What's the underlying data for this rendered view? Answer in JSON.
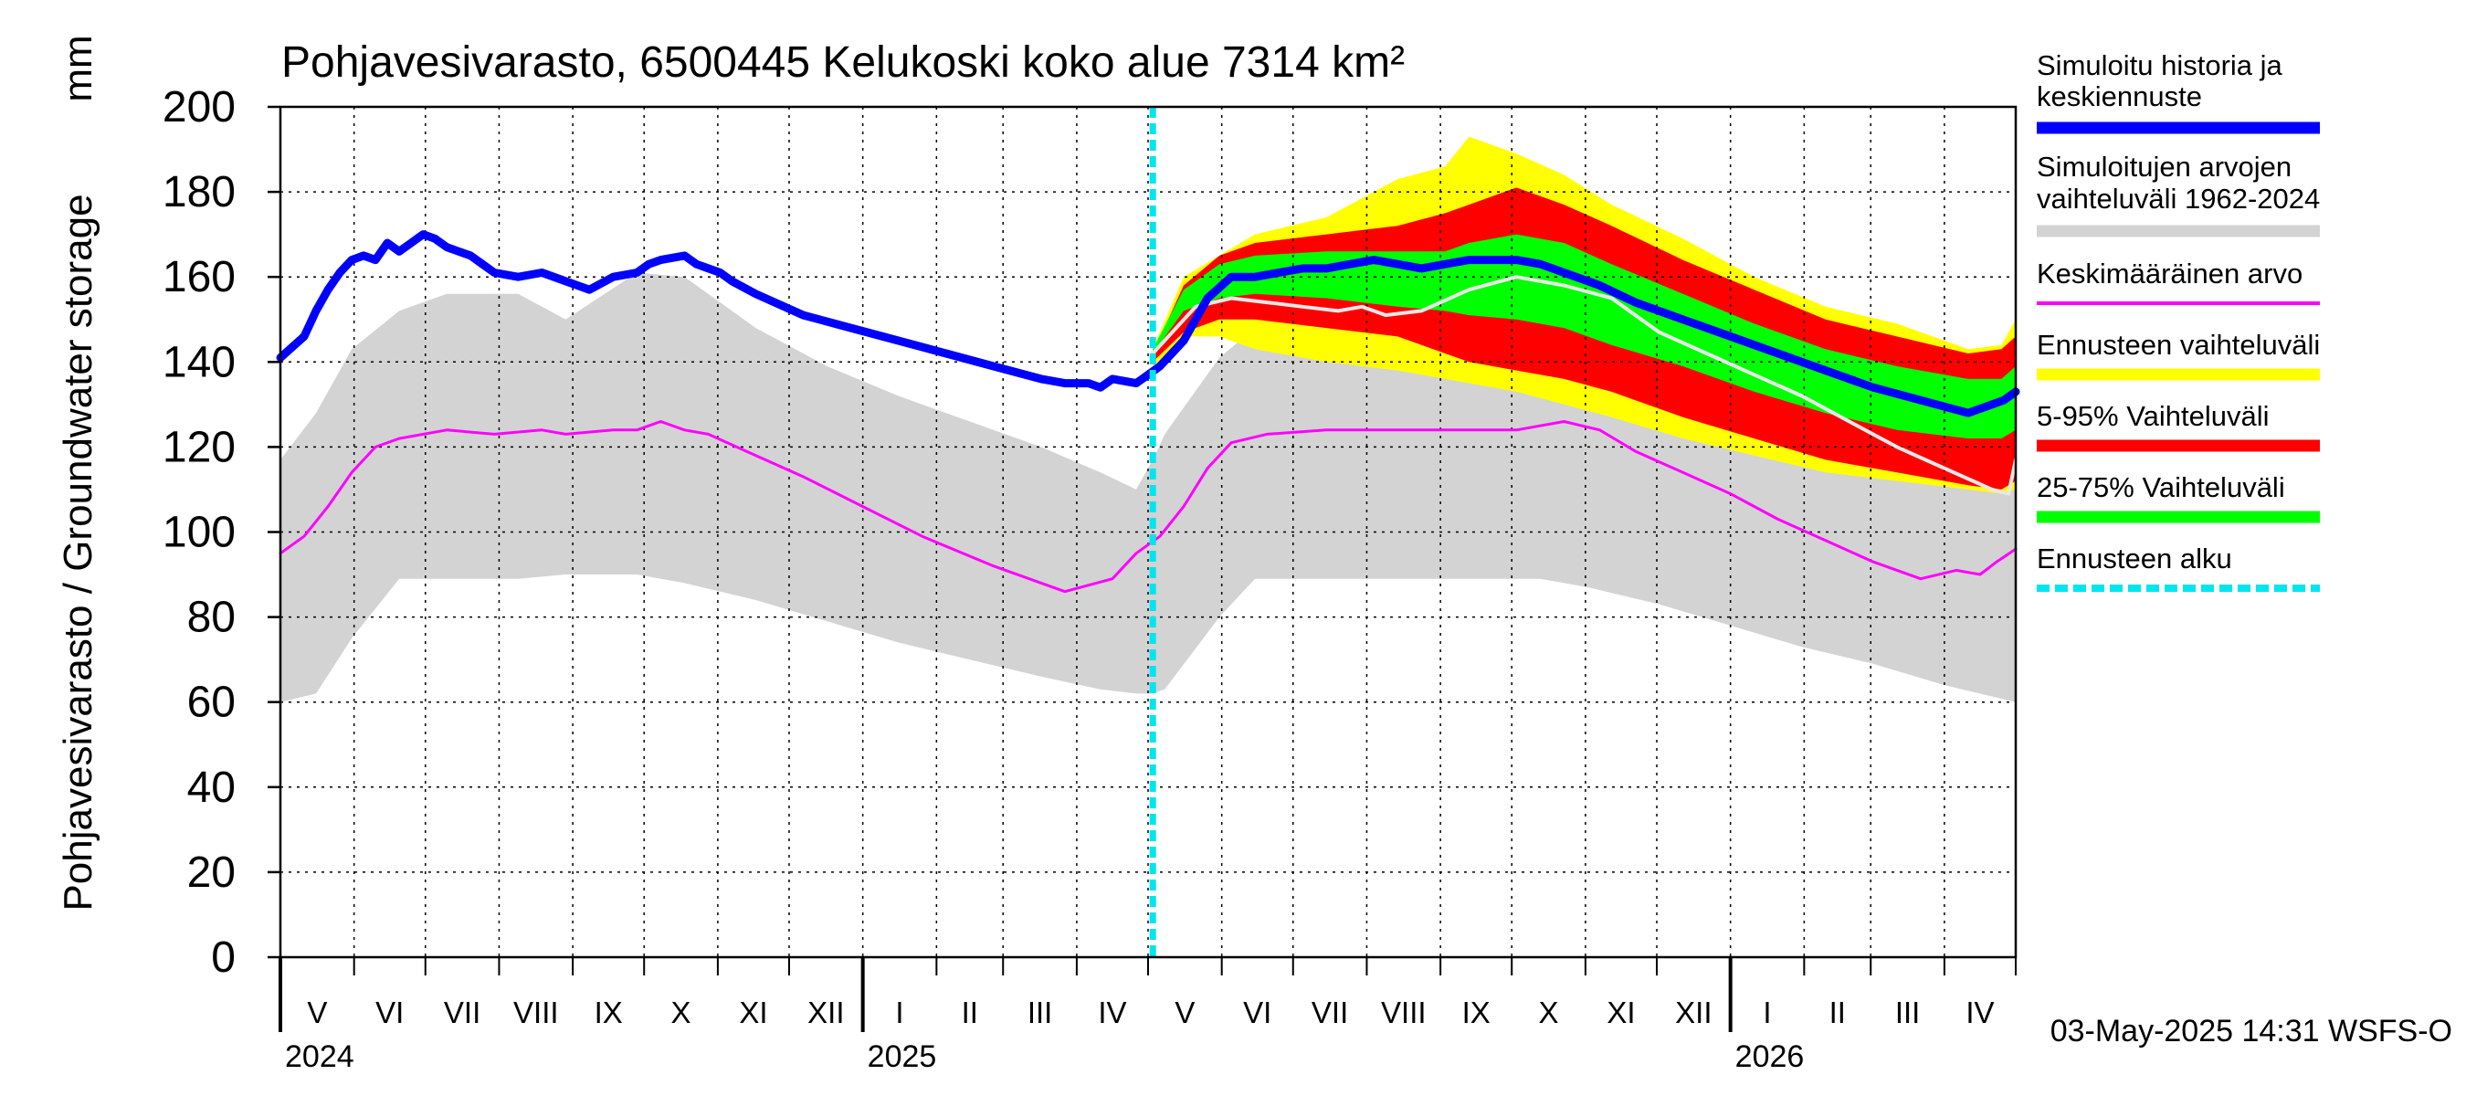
{
  "chart_data": {
    "type": "area",
    "title": "Pohjavesivarasto, 6500445 Kelukoski koko alue 7314 km²",
    "ylabel": "Pohjavesivarasto / Groundwater storage",
    "yunit": "mm",
    "ylim": [
      0,
      200
    ],
    "yticks": [
      0,
      20,
      40,
      60,
      80,
      100,
      120,
      140,
      160,
      180,
      200
    ],
    "xlim_days": [
      0,
      730
    ],
    "months": [
      {
        "label": "V",
        "start": 0,
        "end": 31
      },
      {
        "label": "VI",
        "start": 31,
        "end": 61
      },
      {
        "label": "VII",
        "start": 61,
        "end": 92
      },
      {
        "label": "VIII",
        "start": 92,
        "end": 123
      },
      {
        "label": "IX",
        "start": 123,
        "end": 153
      },
      {
        "label": "X",
        "start": 153,
        "end": 184
      },
      {
        "label": "XI",
        "start": 184,
        "end": 214
      },
      {
        "label": "XII",
        "start": 214,
        "end": 245
      },
      {
        "label": "I",
        "start": 245,
        "end": 276
      },
      {
        "label": "II",
        "start": 276,
        "end": 304
      },
      {
        "label": "III",
        "start": 304,
        "end": 335
      },
      {
        "label": "IV",
        "start": 335,
        "end": 365
      },
      {
        "label": "V",
        "start": 365,
        "end": 396
      },
      {
        "label": "VI",
        "start": 396,
        "end": 426
      },
      {
        "label": "VII",
        "start": 426,
        "end": 457
      },
      {
        "label": "VIII",
        "start": 457,
        "end": 488
      },
      {
        "label": "IX",
        "start": 488,
        "end": 518
      },
      {
        "label": "X",
        "start": 518,
        "end": 549
      },
      {
        "label": "XI",
        "start": 549,
        "end": 579
      },
      {
        "label": "XII",
        "start": 579,
        "end": 610
      },
      {
        "label": "I",
        "start": 610,
        "end": 641
      },
      {
        "label": "II",
        "start": 641,
        "end": 669
      },
      {
        "label": "III",
        "start": 669,
        "end": 700
      },
      {
        "label": "IV",
        "start": 700,
        "end": 730
      }
    ],
    "years": [
      {
        "label": "2024",
        "day": 0
      },
      {
        "label": "2025",
        "day": 245
      },
      {
        "label": "2026",
        "day": 610
      }
    ],
    "forecast_start_day": 367,
    "series": [
      {
        "name": "Simuloitujen arvojen vaihteluväli 1962-2024",
        "kind": "band",
        "color": "#d3d3d3",
        "x": [
          0,
          15,
          30,
          50,
          70,
          100,
          120,
          150,
          170,
          200,
          230,
          260,
          290,
          320,
          345,
          360,
          367,
          372,
          395,
          410,
          440,
          470,
          500,
          530,
          550,
          580,
          610,
          640,
          670,
          700,
          730
        ],
        "lower": [
          60,
          62,
          75,
          89,
          89,
          89,
          90,
          90,
          88,
          84,
          79,
          74,
          70,
          66,
          63,
          62,
          62,
          63,
          80,
          89,
          89,
          89,
          89,
          89,
          87,
          83,
          78,
          73,
          69,
          64,
          60
        ],
        "upper": [
          117,
          128,
          143,
          152,
          156,
          156,
          150,
          161,
          160,
          148,
          139,
          132,
          126,
          120,
          114,
          110,
          117,
          123,
          141,
          148,
          153,
          156,
          158,
          158,
          152,
          145,
          138,
          132,
          126,
          120,
          115
        ]
      },
      {
        "name": "Ennusteen vaihteluväli",
        "kind": "band",
        "color": "#ffff00",
        "x": [
          367,
          380,
          395,
          410,
          440,
          470,
          490,
          500,
          520,
          540,
          560,
          590,
          620,
          650,
          680,
          710,
          724,
          730
        ],
        "lower": [
          138,
          146,
          146,
          143,
          140,
          138,
          136,
          135,
          133,
          130,
          127,
          122,
          118,
          114,
          112,
          110,
          109,
          110
        ],
        "upper": [
          143,
          160,
          165,
          170,
          174,
          183,
          186,
          193,
          189,
          184,
          177,
          169,
          160,
          153,
          149,
          143,
          144,
          150
        ]
      },
      {
        "name": "5-95% Vaihteluväli",
        "kind": "band",
        "color": "#ff0000",
        "x": [
          367,
          380,
          395,
          410,
          440,
          470,
          490,
          500,
          520,
          540,
          560,
          590,
          620,
          650,
          680,
          710,
          724,
          730
        ],
        "lower": [
          140,
          147,
          150,
          150,
          148,
          146,
          142,
          140,
          138,
          136,
          133,
          127,
          122,
          117,
          114,
          111,
          110,
          112
        ],
        "upper": [
          142,
          158,
          165,
          168,
          170,
          172,
          175,
          177,
          181,
          177,
          172,
          164,
          157,
          150,
          146,
          142,
          143,
          146
        ]
      },
      {
        "name": "25-75% Vaihteluväli",
        "kind": "band",
        "color": "#00ff00",
        "x": [
          367,
          380,
          395,
          410,
          440,
          470,
          490,
          500,
          520,
          540,
          560,
          590,
          620,
          650,
          680,
          710,
          724,
          730
        ],
        "lower": [
          142,
          152,
          155,
          156,
          155,
          153,
          152,
          151,
          150,
          148,
          144,
          139,
          133,
          128,
          124,
          122,
          122,
          124
        ],
        "upper": [
          143,
          157,
          163,
          165,
          166,
          166,
          166,
          168,
          170,
          168,
          163,
          156,
          149,
          143,
          139,
          136,
          136,
          139
        ]
      },
      {
        "name": "Ennuste (harmaa viiva)",
        "kind": "line",
        "color": "#e8e8e8",
        "width": 4,
        "x": [
          367,
          385,
          400,
          415,
          430,
          445,
          455,
          465,
          480,
          500,
          520,
          540,
          560,
          580,
          600,
          620,
          640,
          660,
          680,
          700,
          720,
          727,
          730
        ],
        "y": [
          142,
          153,
          155,
          154,
          153,
          152,
          153,
          151,
          152,
          157,
          160,
          158,
          155,
          147,
          142,
          137,
          132,
          126,
          120,
          115,
          110,
          109,
          117
        ]
      },
      {
        "name": "Keskimääräinen arvo",
        "kind": "line",
        "color": "#ff00ff",
        "width": 3,
        "x": [
          0,
          10,
          20,
          30,
          40,
          50,
          70,
          90,
          110,
          120,
          140,
          150,
          160,
          170,
          180,
          200,
          220,
          245,
          270,
          300,
          330,
          350,
          360,
          370,
          380,
          390,
          400,
          415,
          440,
          470,
          500,
          520,
          540,
          555,
          570,
          590,
          610,
          630,
          650,
          670,
          690,
          705,
          715,
          722,
          730
        ],
        "y": [
          95,
          99,
          106,
          114,
          120,
          122,
          124,
          123,
          124,
          123,
          124,
          124,
          126,
          124,
          123,
          118,
          113,
          106,
          99,
          92,
          86,
          89,
          95,
          99,
          106,
          115,
          121,
          123,
          124,
          124,
          124,
          124,
          126,
          124,
          119,
          114,
          109,
          103,
          98,
          93,
          89,
          91,
          90,
          93,
          96
        ]
      },
      {
        "name": "Simuloitu historia ja keskiennuste",
        "kind": "line",
        "color": "#0000ff",
        "width": 9,
        "x": [
          0,
          10,
          15,
          20,
          25,
          30,
          35,
          40,
          45,
          50,
          55,
          60,
          65,
          70,
          75,
          80,
          85,
          90,
          100,
          110,
          120,
          130,
          140,
          150,
          155,
          160,
          170,
          175,
          180,
          185,
          190,
          200,
          220,
          240,
          260,
          280,
          300,
          320,
          330,
          340,
          345,
          350,
          360,
          370,
          380,
          390,
          400,
          410,
          420,
          430,
          440,
          450,
          460,
          470,
          480,
          490,
          500,
          510,
          520,
          530,
          540,
          555,
          570,
          590,
          610,
          630,
          650,
          670,
          690,
          710,
          720,
          725,
          730
        ],
        "y": [
          141,
          146,
          152,
          157,
          161,
          164,
          165,
          164,
          168,
          166,
          168,
          170,
          169,
          167,
          166,
          165,
          163,
          161,
          160,
          161,
          159,
          157,
          160,
          161,
          163,
          164,
          165,
          163,
          162,
          161,
          159,
          156,
          151,
          148,
          145,
          142,
          139,
          136,
          135,
          135,
          134,
          136,
          135,
          139,
          145,
          155,
          160,
          160,
          161,
          162,
          162,
          163,
          164,
          163,
          162,
          163,
          164,
          164,
          164,
          163,
          161,
          158,
          154,
          150,
          146,
          142,
          138,
          134,
          131,
          128,
          130,
          131,
          133
        ]
      }
    ],
    "legend": [
      {
        "label": "Simuloitu historia ja\nkeskiennuste",
        "color": "#0000ff",
        "style": "thick"
      },
      {
        "label": "Simuloitujen arvojen\nvaihteluväli 1962-2024",
        "color": "#d3d3d3",
        "style": "thick"
      },
      {
        "label": "Keskimääräinen arvo",
        "color": "#ff00ff",
        "style": "thin"
      },
      {
        "label": "Ennusteen vaihteluväli",
        "color": "#ffff00",
        "style": "thick"
      },
      {
        "label": "5-95% Vaihteluväli",
        "color": "#ff0000",
        "style": "thick"
      },
      {
        "label": "25-75% Vaihteluväli",
        "color": "#00ff00",
        "style": "thick"
      },
      {
        "label": "Ennusteen alku",
        "color": "#00e5ee",
        "style": "dashed"
      }
    ],
    "footer": "03-May-2025 14:31 WSFS-O"
  }
}
